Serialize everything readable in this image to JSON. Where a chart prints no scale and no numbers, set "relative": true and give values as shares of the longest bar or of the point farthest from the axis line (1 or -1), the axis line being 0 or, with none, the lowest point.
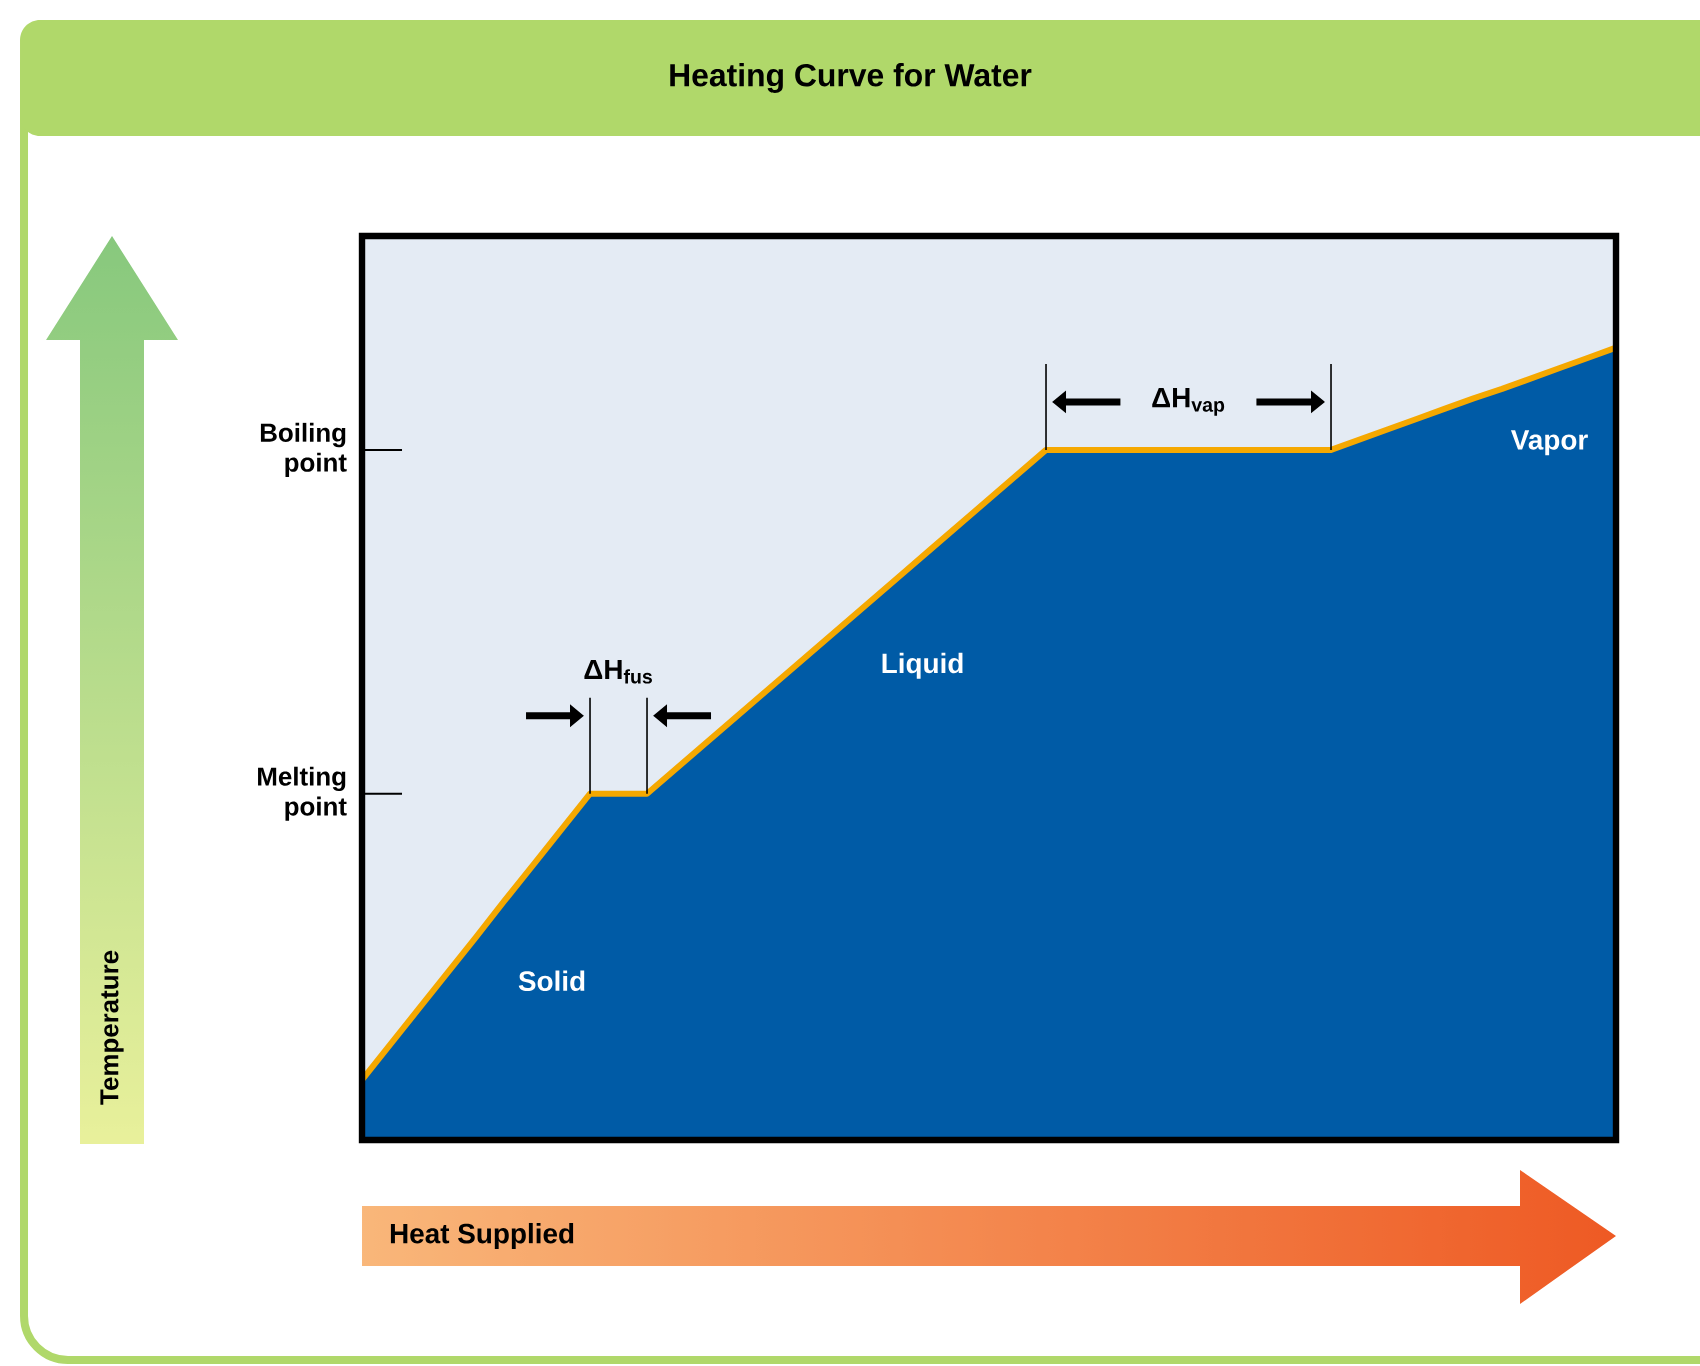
{
  "chart_data": {
    "type": "area",
    "title": "Heating Curve for Water",
    "xlabel": "Heat Supplied",
    "relative": true,
    "categories": [
      null,
      null,
      null,
      null,
      null,
      null,
      null,
      null,
      null,
      null,
      null,
      null,
      null,
      null,
      null,
      null,
      null,
      null,
      null,
      null,
      null,
      null,
      null,
      null,
      null,
      null,
      null,
      null,
      null,
      null,
      null,
      null,
      null,
      null,
      null,
      null,
      null,
      null,
      null,
      null,
      null,
      null,
      null,
      null,
      null
    ],
    "values": [
      0.076,
      0.121,
      0.166,
      0.211,
      0.256,
      0.302,
      0.347,
      0.392,
      0.437,
      0.437,
      0.437,
      0.468,
      0.499,
      0.53,
      0.561,
      0.592,
      0.623,
      0.654,
      0.685,
      0.716,
      0.747,
      0.778,
      0.809,
      0.84,
      0.871,
      0.871,
      0.871,
      0.871,
      0.871,
      0.871,
      0.871,
      0.871,
      0.871,
      0.871,
      0.871,
      0.884,
      0.897,
      0.91,
      0.923,
      0.936,
      0.948,
      0.961,
      0.974,
      0.987,
      1
    ],
    "color": "#005ba6",
    "ref_lines": [
      {
        "axis": "y",
        "value": 0.437,
        "label": "Melting point"
      },
      {
        "axis": "y",
        "value": 0.871,
        "label": "Boiling point"
      }
    ],
    "annotations": [
      "Solid",
      "Liquid",
      "Vapor",
      "ΔH$_{fus}$",
      "ΔH$_{vap}$",
      "Temperature"
    ]
  }
}
